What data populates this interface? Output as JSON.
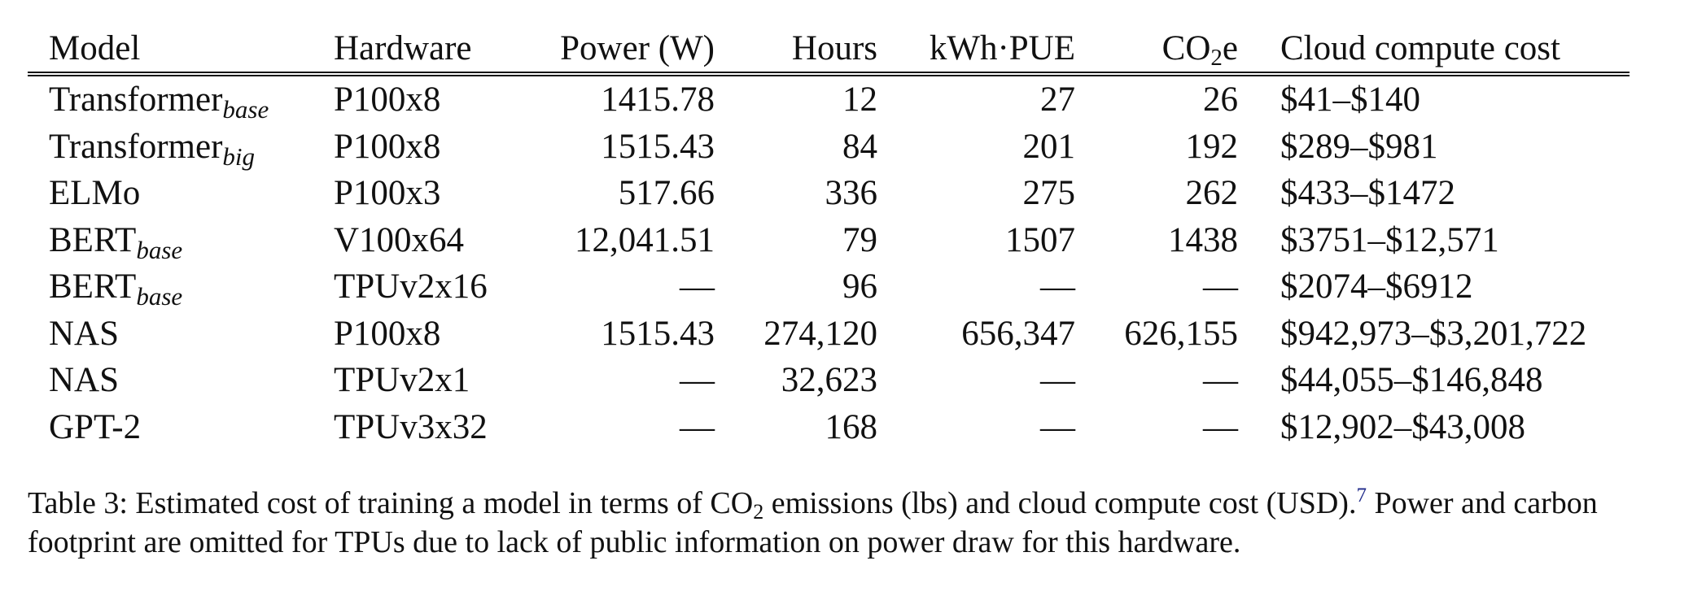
{
  "table": {
    "headers": {
      "model": "Model",
      "hardware": "Hardware",
      "power": "Power (W)",
      "hours": "Hours",
      "kwh": "kWh·PUE",
      "co2_main": "CO",
      "co2_sub": "2",
      "co2_tail": "e",
      "cost": "Cloud compute cost"
    },
    "rows": [
      {
        "model": "Transformer",
        "model_sub": "base",
        "hardware": "P100x8",
        "power": "1415.78",
        "hours": "12",
        "kwh": "27",
        "co2": "26",
        "cost": "$41–$140"
      },
      {
        "model": "Transformer",
        "model_sub": "big",
        "hardware": "P100x8",
        "power": "1515.43",
        "hours": "84",
        "kwh": "201",
        "co2": "192",
        "cost": "$289–$981"
      },
      {
        "model": "ELMo",
        "model_sub": "",
        "hardware": "P100x3",
        "power": "517.66",
        "hours": "336",
        "kwh": "275",
        "co2": "262",
        "cost": "$433–$1472"
      },
      {
        "model": "BERT",
        "model_sub": "base",
        "hardware": "V100x64",
        "power": "12,041.51",
        "hours": "79",
        "kwh": "1507",
        "co2": "1438",
        "cost": "$3751–$12,571"
      },
      {
        "model": "BERT",
        "model_sub": "base",
        "hardware": "TPUv2x16",
        "power": "—",
        "hours": "96",
        "kwh": "—",
        "co2": "—",
        "cost": "$2074–$6912"
      },
      {
        "model": "NAS",
        "model_sub": "",
        "hardware": "P100x8",
        "power": "1515.43",
        "hours": "274,120",
        "kwh": "656,347",
        "co2": "626,155",
        "cost": "$942,973–$3,201,722"
      },
      {
        "model": "NAS",
        "model_sub": "",
        "hardware": "TPUv2x1",
        "power": "—",
        "hours": "32,623",
        "kwh": "—",
        "co2": "—",
        "cost": "$44,055–$146,848"
      },
      {
        "model": "GPT-2",
        "model_sub": "",
        "hardware": "TPUv3x32",
        "power": "—",
        "hours": "168",
        "kwh": "—",
        "co2": "—",
        "cost": "$12,902–$43,008"
      }
    ]
  },
  "caption": {
    "part1": "Table 3: Estimated cost of training a model in terms of CO",
    "sub": "2",
    "part2": " emissions (lbs) and cloud compute cost (USD).",
    "footnote": "7",
    "part3": " Power and carbon footprint are omitted for TPUs due to lack of public information on power draw for this hardware."
  }
}
